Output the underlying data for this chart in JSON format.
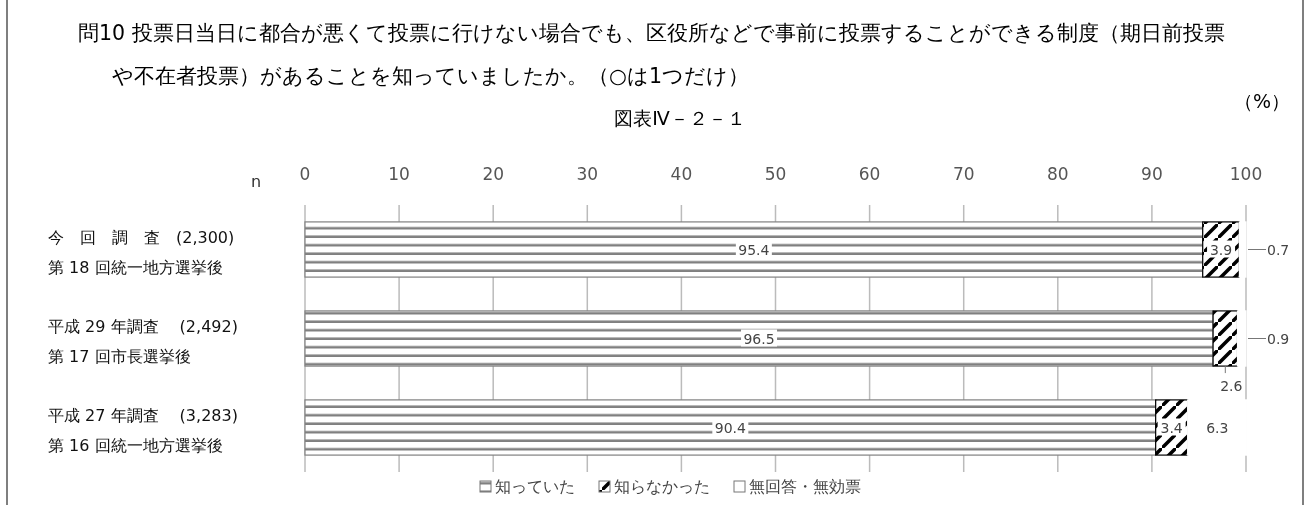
{
  "chart_data": {
    "type": "bar",
    "orientation": "horizontal",
    "stacked": true,
    "title": "問10 投票日当日に都合が悪くて投票に行けない場合でも、区役所などで事前に投票することができる制度（期日前投票や不在者投票）があることを知っていましたか。（○は1つだけ）",
    "subtitle": "図表Ⅳ－２－１",
    "ylabel": "n",
    "xlabel": "（%）",
    "categories": [
      "今　回　調　査　(2,300)\n第 18 回統一地方選挙後",
      "平成 29 年調査　 (2,492)\n第 17 回市長選挙後",
      "平成 27 年調査　 (3,283)\n第 16 回統一地方選挙後"
    ],
    "series": [
      {
        "name": "知っていた",
        "color": "#808080",
        "values": [
          95.4,
          96.5,
          90.4
        ]
      },
      {
        "name": "知らなかった",
        "color": "#000000",
        "values": [
          3.9,
          2.6,
          3.4
        ]
      },
      {
        "name": "無回答・無効票",
        "color": "#ffffff",
        "values": [
          0.7,
          0.9,
          6.3
        ]
      }
    ],
    "xlim": [
      0,
      100
    ],
    "xticks": [
      0,
      10,
      20,
      30,
      40,
      50,
      60,
      70,
      80,
      90,
      100
    ],
    "grid": "x",
    "legend": "bottom",
    "data_labels": true
  }
}
